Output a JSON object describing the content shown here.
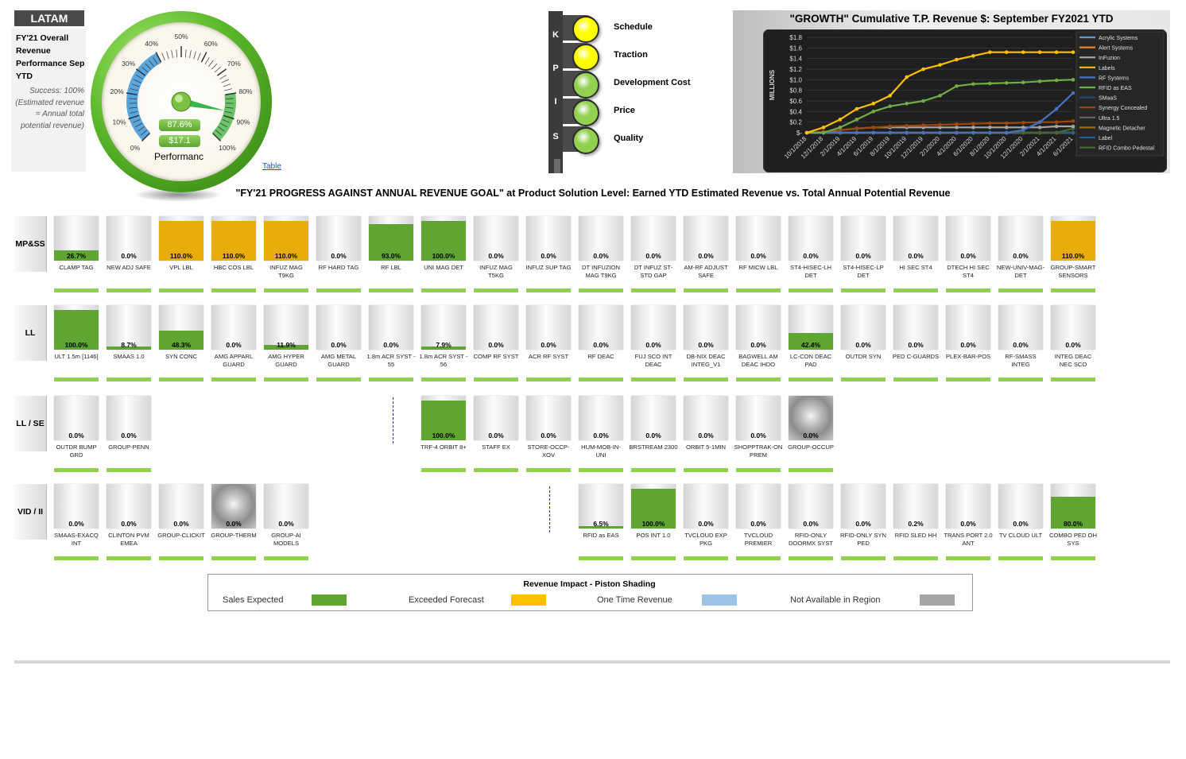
{
  "header": {
    "region_tag": "LATAM",
    "overall_title": "FY'21 Overall Revenue Performance Sep YTD",
    "success_note": "Success: 100% (Estimated revenue = Annual total potential revenue)"
  },
  "gauge": {
    "tick_labels": [
      "0%",
      "10%",
      "20%",
      "30%",
      "40%",
      "50%",
      "60%",
      "70%",
      "80%",
      "90%",
      "100%"
    ],
    "performance_value": "87.6%",
    "performance_fraction": 0.876,
    "revenue_value": "$17.1",
    "caption": "Performanc",
    "link_text": "Table"
  },
  "kpis": {
    "letters": [
      "K",
      "P",
      "I",
      "S"
    ],
    "items": [
      {
        "name": "Schedule",
        "status": "yellow",
        "color": "#ffff00"
      },
      {
        "name": "Traction",
        "status": "yellow",
        "color": "#ffff00"
      },
      {
        "name": "Development Cost",
        "status": "green",
        "color": "#92d050"
      },
      {
        "name": "Price",
        "status": "green",
        "color": "#92d050"
      },
      {
        "name": "Quality",
        "status": "green",
        "color": "#92d050"
      }
    ]
  },
  "chart_data": {
    "type": "line",
    "title": "\"GROWTH\" Cumulative T.P. Revenue $: September FY2021 YTD",
    "ylabel": "MILLIONS",
    "ylim": [
      0,
      1.8
    ],
    "y_ticks": [
      "$-",
      "$0.2",
      "$0.4",
      "$0.6",
      "$0.8",
      "$1.0",
      "$1.2",
      "$1.4",
      "$1.6",
      "$1.8"
    ],
    "x_ticks": [
      "10/1/2018",
      "12/1/2018",
      "2/1/2019",
      "4/1/2019",
      "6/1/2019",
      "8/1/2019",
      "10/1/2019",
      "12/1/2019",
      "2/1/2020",
      "4/1/2020",
      "6/1/2020",
      "8/1/2020",
      "10/1/2020",
      "12/1/2020",
      "2/1/2021",
      "4/1/2021",
      "6/1/2021"
    ],
    "legend_position": "right",
    "series": [
      {
        "name": "Acrylic Systems",
        "color": "#5b9bd5",
        "values": [
          0,
          0,
          0,
          0,
          0,
          0,
          0,
          0,
          0,
          0,
          0,
          0,
          0,
          0,
          0,
          0,
          0
        ]
      },
      {
        "name": "Alert Systems",
        "color": "#ed7d31",
        "values": [
          0,
          0,
          0,
          0,
          0,
          0,
          0,
          0,
          0,
          0,
          0,
          0,
          0,
          0,
          0,
          0,
          0
        ]
      },
      {
        "name": "InFuzion",
        "color": "#a5a5a5",
        "values": [
          0,
          0,
          0.05,
          0.08,
          0.1,
          0.1,
          0.1,
          0.1,
          0.1,
          0.1,
          0.1,
          0.1,
          0.1,
          0.1,
          0.1,
          0.12,
          0.12
        ]
      },
      {
        "name": "Labels",
        "color": "#ffc000",
        "values": [
          0,
          0.1,
          0.25,
          0.45,
          0.55,
          0.7,
          1.05,
          1.2,
          1.28,
          1.38,
          1.45,
          1.52,
          1.52,
          1.52,
          1.52,
          1.52,
          1.52
        ]
      },
      {
        "name": "RF Systems",
        "color": "#4472c4",
        "values": [
          0,
          0,
          0,
          0,
          0,
          0,
          0,
          0,
          0,
          0,
          0,
          0,
          0,
          0.05,
          0.2,
          0.45,
          0.75
        ]
      },
      {
        "name": "RFID as EAS",
        "color": "#70ad47",
        "values": [
          0,
          0,
          0.1,
          0.25,
          0.4,
          0.5,
          0.55,
          0.6,
          0.7,
          0.88,
          0.92,
          0.93,
          0.94,
          0.95,
          0.97,
          0.99,
          1.0
        ]
      },
      {
        "name": "SMaaS",
        "color": "#264478",
        "values": [
          0,
          0,
          0,
          0,
          0,
          0,
          0,
          0,
          0,
          0,
          0,
          0,
          0,
          0,
          0,
          0,
          0
        ]
      },
      {
        "name": "Synergy Concealed",
        "color": "#9e480e",
        "values": [
          0,
          0.02,
          0.05,
          0.08,
          0.1,
          0.12,
          0.13,
          0.14,
          0.15,
          0.16,
          0.17,
          0.18,
          0.18,
          0.19,
          0.2,
          0.2,
          0.22
        ]
      },
      {
        "name": "Ultra 1.5",
        "color": "#636363",
        "values": [
          0,
          0,
          0,
          0,
          0,
          0,
          0,
          0,
          0,
          0,
          0,
          0,
          0,
          0,
          0,
          0,
          0
        ]
      },
      {
        "name": "Magnetic Detacher",
        "color": "#997300",
        "values": [
          0,
          0,
          0,
          0,
          0,
          0,
          0,
          0,
          0,
          0,
          0,
          0,
          0,
          0,
          0,
          0,
          0
        ]
      },
      {
        "name": "Label",
        "color": "#255e91",
        "values": [
          0,
          0,
          0,
          0,
          0,
          0,
          0,
          0,
          0,
          0,
          0,
          0,
          0,
          0,
          0,
          0,
          0
        ]
      },
      {
        "name": "RFID Combo Pedestal",
        "color": "#43682b",
        "values": [
          0,
          0,
          0,
          0,
          0,
          0,
          0,
          0,
          0,
          0,
          0,
          0,
          0,
          0,
          0,
          0,
          0.08
        ]
      }
    ]
  },
  "section_title": {
    "bold": "\"FY'21 PROGRESS AGAINST ANNUAL REVENUE GOAL\"",
    "rest": " at Product Solution Level: Earned YTD Estimated Revenue vs. Total Annual Potential Revenue"
  },
  "rows": [
    {
      "label": "MP&SS",
      "tiles": [
        {
          "name": "CLAMP TAG",
          "pct": "26.7%",
          "value": 0.267,
          "status": "sales"
        },
        {
          "name": "NEW ADJ SAFE",
          "pct": "0.0%",
          "value": 0,
          "status": "sales"
        },
        {
          "name": "VPL LBL",
          "pct": "110.0%",
          "value": 1.1,
          "status": "exceeded"
        },
        {
          "name": "HBC COS LBL",
          "pct": "110.0%",
          "value": 1.1,
          "status": "exceeded"
        },
        {
          "name": "INFUZ MAG T9KG",
          "pct": "110.0%",
          "value": 1.1,
          "status": "exceeded"
        },
        {
          "name": "RF HARD TAG",
          "pct": "0.0%",
          "value": 0,
          "status": "sales"
        },
        {
          "name": "RF LBL",
          "pct": "93.0%",
          "value": 0.93,
          "status": "sales"
        },
        {
          "name": "UNI MAG DET",
          "pct": "100.0%",
          "value": 1.0,
          "status": "sales"
        },
        {
          "name": "INFUZ MAG T5KG",
          "pct": "0.0%",
          "value": 0,
          "status": "sales"
        },
        {
          "name": "INFUZ SUP TAG",
          "pct": "0.0%",
          "value": 0,
          "status": "sales"
        },
        {
          "name": "DT INFUZION MAG T9KG",
          "pct": "0.0%",
          "value": 0,
          "status": "sales"
        },
        {
          "name": "DT INFUZ ST-STD GAP",
          "pct": "0.0%",
          "value": 0,
          "status": "sales"
        },
        {
          "name": "AM-RF ADJUST SAFE",
          "pct": "0.0%",
          "value": 0,
          "status": "sales"
        },
        {
          "name": "RF MICW LBL",
          "pct": "0.0%",
          "value": 0,
          "status": "sales"
        },
        {
          "name": "ST4-HISEC-LH DET",
          "pct": "0.0%",
          "value": 0,
          "status": "sales"
        },
        {
          "name": "ST4-HISEC-LP DET",
          "pct": "0.0%",
          "value": 0,
          "status": "sales"
        },
        {
          "name": "HI SEC ST4",
          "pct": "0.0%",
          "value": 0,
          "status": "sales"
        },
        {
          "name": "DTECH HI SEC ST4",
          "pct": "0.0%",
          "value": 0,
          "status": "sales"
        },
        {
          "name": "NEW-UNIV-MAG-DET",
          "pct": "0.0%",
          "value": 0,
          "status": "sales"
        },
        {
          "name": "GROUP-SMART SENSORS",
          "pct": "110.0%",
          "value": 1.1,
          "status": "exceeded"
        }
      ]
    },
    {
      "label": "LL",
      "tiles": [
        {
          "name": "ULT 1.5m [1146]",
          "pct": "100.0%",
          "value": 1.0,
          "status": "sales"
        },
        {
          "name": "SMAAS 1.0",
          "pct": "8.7%",
          "value": 0.087,
          "status": "sales"
        },
        {
          "name": "SYN CONC",
          "pct": "48.3%",
          "value": 0.483,
          "status": "sales"
        },
        {
          "name": "AMG APPARL GUARD",
          "pct": "0.0%",
          "value": 0,
          "status": "sales"
        },
        {
          "name": "AMG HYPER GUARD",
          "pct": "11.9%",
          "value": 0.119,
          "status": "sales"
        },
        {
          "name": "AMG METAL GUARD",
          "pct": "0.0%",
          "value": 0,
          "status": "sales"
        },
        {
          "name": "1.8m ACR SYST - 55",
          "pct": "0.0%",
          "value": 0,
          "status": "sales"
        },
        {
          "name": "1.8m ACR SYST - 56",
          "pct": "7.9%",
          "value": 0.079,
          "status": "sales"
        },
        {
          "name": "COMP RF SYST",
          "pct": "0.0%",
          "value": 0,
          "status": "sales"
        },
        {
          "name": "ACR RF SYST",
          "pct": "0.0%",
          "value": 0,
          "status": "sales"
        },
        {
          "name": "RF DEAC",
          "pct": "0.0%",
          "value": 0,
          "status": "sales"
        },
        {
          "name": "FUJ SCO INT DEAC",
          "pct": "0.0%",
          "value": 0,
          "status": "sales"
        },
        {
          "name": "DB-NIX DEAC INTEG_V1",
          "pct": "0.0%",
          "value": 0,
          "status": "sales"
        },
        {
          "name": "BAGWELL AM DEAC IHDO",
          "pct": "0.0%",
          "value": 0,
          "status": "sales"
        },
        {
          "name": "LC-CON DEAC PAD",
          "pct": "42.4%",
          "value": 0.424,
          "status": "sales"
        },
        {
          "name": "OUTDR SYN",
          "pct": "0.0%",
          "value": 0,
          "status": "sales"
        },
        {
          "name": "PED C-GUARDS",
          "pct": "0.0%",
          "value": 0,
          "status": "sales"
        },
        {
          "name": "PLEX-BAR-POS",
          "pct": "0.0%",
          "value": 0,
          "status": "sales"
        },
        {
          "name": "RF-SMASS INTEG",
          "pct": "0.0%",
          "value": 0,
          "status": "sales"
        },
        {
          "name": "INTEG DEAC NEC SCO",
          "pct": "0.0%",
          "value": 0,
          "status": "sales"
        }
      ]
    },
    {
      "label": "LL / SE",
      "tiles": [
        {
          "name": "OUTDR BUMP GRD",
          "pct": "0.0%",
          "value": 0,
          "status": "sales"
        },
        {
          "name": "GROUP-PENN",
          "pct": "0.0%",
          "value": 0,
          "status": "sales"
        },
        {
          "name": "TRF-4 ORBIT 8+",
          "pct": "100.0%",
          "value": 1.0,
          "status": "sales"
        },
        {
          "name": "STAFF EX",
          "pct": "0.0%",
          "value": 0,
          "status": "sales"
        },
        {
          "name": "STORE-OCCP-XOV",
          "pct": "0.0%",
          "value": 0,
          "status": "sales"
        },
        {
          "name": "HUM-MOB-IN-UNI",
          "pct": "0.0%",
          "value": 0,
          "status": "sales"
        },
        {
          "name": "BRSTREAM 2300",
          "pct": "0.0%",
          "value": 0,
          "status": "sales"
        },
        {
          "name": "ORBIT 5-1MIN",
          "pct": "0.0%",
          "value": 0,
          "status": "sales"
        },
        {
          "name": "SHOPPTRAK-ON PREM",
          "pct": "0.0%",
          "value": 0,
          "status": "sales"
        },
        {
          "name": "GROUP-OCCUP",
          "pct": "0.0%",
          "value": 0,
          "status": "image"
        }
      ]
    },
    {
      "label": "VID / II",
      "tiles": [
        {
          "name": "SMAAS-EXACQ INT",
          "pct": "0.0%",
          "value": 0,
          "status": "sales"
        },
        {
          "name": "CLINTON PVM EMEA",
          "pct": "0.0%",
          "value": 0,
          "status": "sales"
        },
        {
          "name": "GROUP-CLICKIT",
          "pct": "0.0%",
          "value": 0,
          "status": "sales"
        },
        {
          "name": "GROUP-THERM",
          "pct": "0.0%",
          "value": 0,
          "status": "image"
        },
        {
          "name": "GROUP-AI MODELS",
          "pct": "0.0%",
          "value": 0,
          "status": "sales"
        },
        {
          "name": "RFID as EAS",
          "pct": "6.5%",
          "value": 0.065,
          "status": "sales"
        },
        {
          "name": "POS INT 1.0",
          "pct": "100.0%",
          "value": 1.0,
          "status": "sales"
        },
        {
          "name": "TVCLOUD EXP PKG",
          "pct": "0.0%",
          "value": 0,
          "status": "sales"
        },
        {
          "name": "TVCLOUD PREMIER",
          "pct": "0.0%",
          "value": 0,
          "status": "sales"
        },
        {
          "name": "RFID-ONLY DOORMX SYST",
          "pct": "0.0%",
          "value": 0,
          "status": "sales"
        },
        {
          "name": "RFID-ONLY SYN PED",
          "pct": "0.0%",
          "value": 0,
          "status": "sales"
        },
        {
          "name": "RFID SLED HH",
          "pct": "0.2%",
          "value": 0.002,
          "status": "sales"
        },
        {
          "name": "TRANS PORT 2.0 ANT",
          "pct": "0.0%",
          "value": 0,
          "status": "sales"
        },
        {
          "name": "TV CLOUD ULT",
          "pct": "0.0%",
          "value": 0,
          "status": "sales"
        },
        {
          "name": "COMBO PED OH SYS",
          "pct": "80.0%",
          "value": 0.8,
          "status": "sales"
        }
      ]
    }
  ],
  "legend": {
    "title": "Revenue Impact - Piston Shading",
    "items": [
      {
        "label": "Sales Expected",
        "color": "#5ea532"
      },
      {
        "label": "Exceeded Forecast",
        "color": "#ffc000"
      },
      {
        "label": "One Time Revenue",
        "color": "#9dc3e6"
      },
      {
        "label": "Not Available in Region",
        "color": "#a6a6a6"
      }
    ]
  },
  "colors": {
    "sales": "#5ea532",
    "exceeded": "#e9ad0b",
    "bar": "#92d050"
  }
}
